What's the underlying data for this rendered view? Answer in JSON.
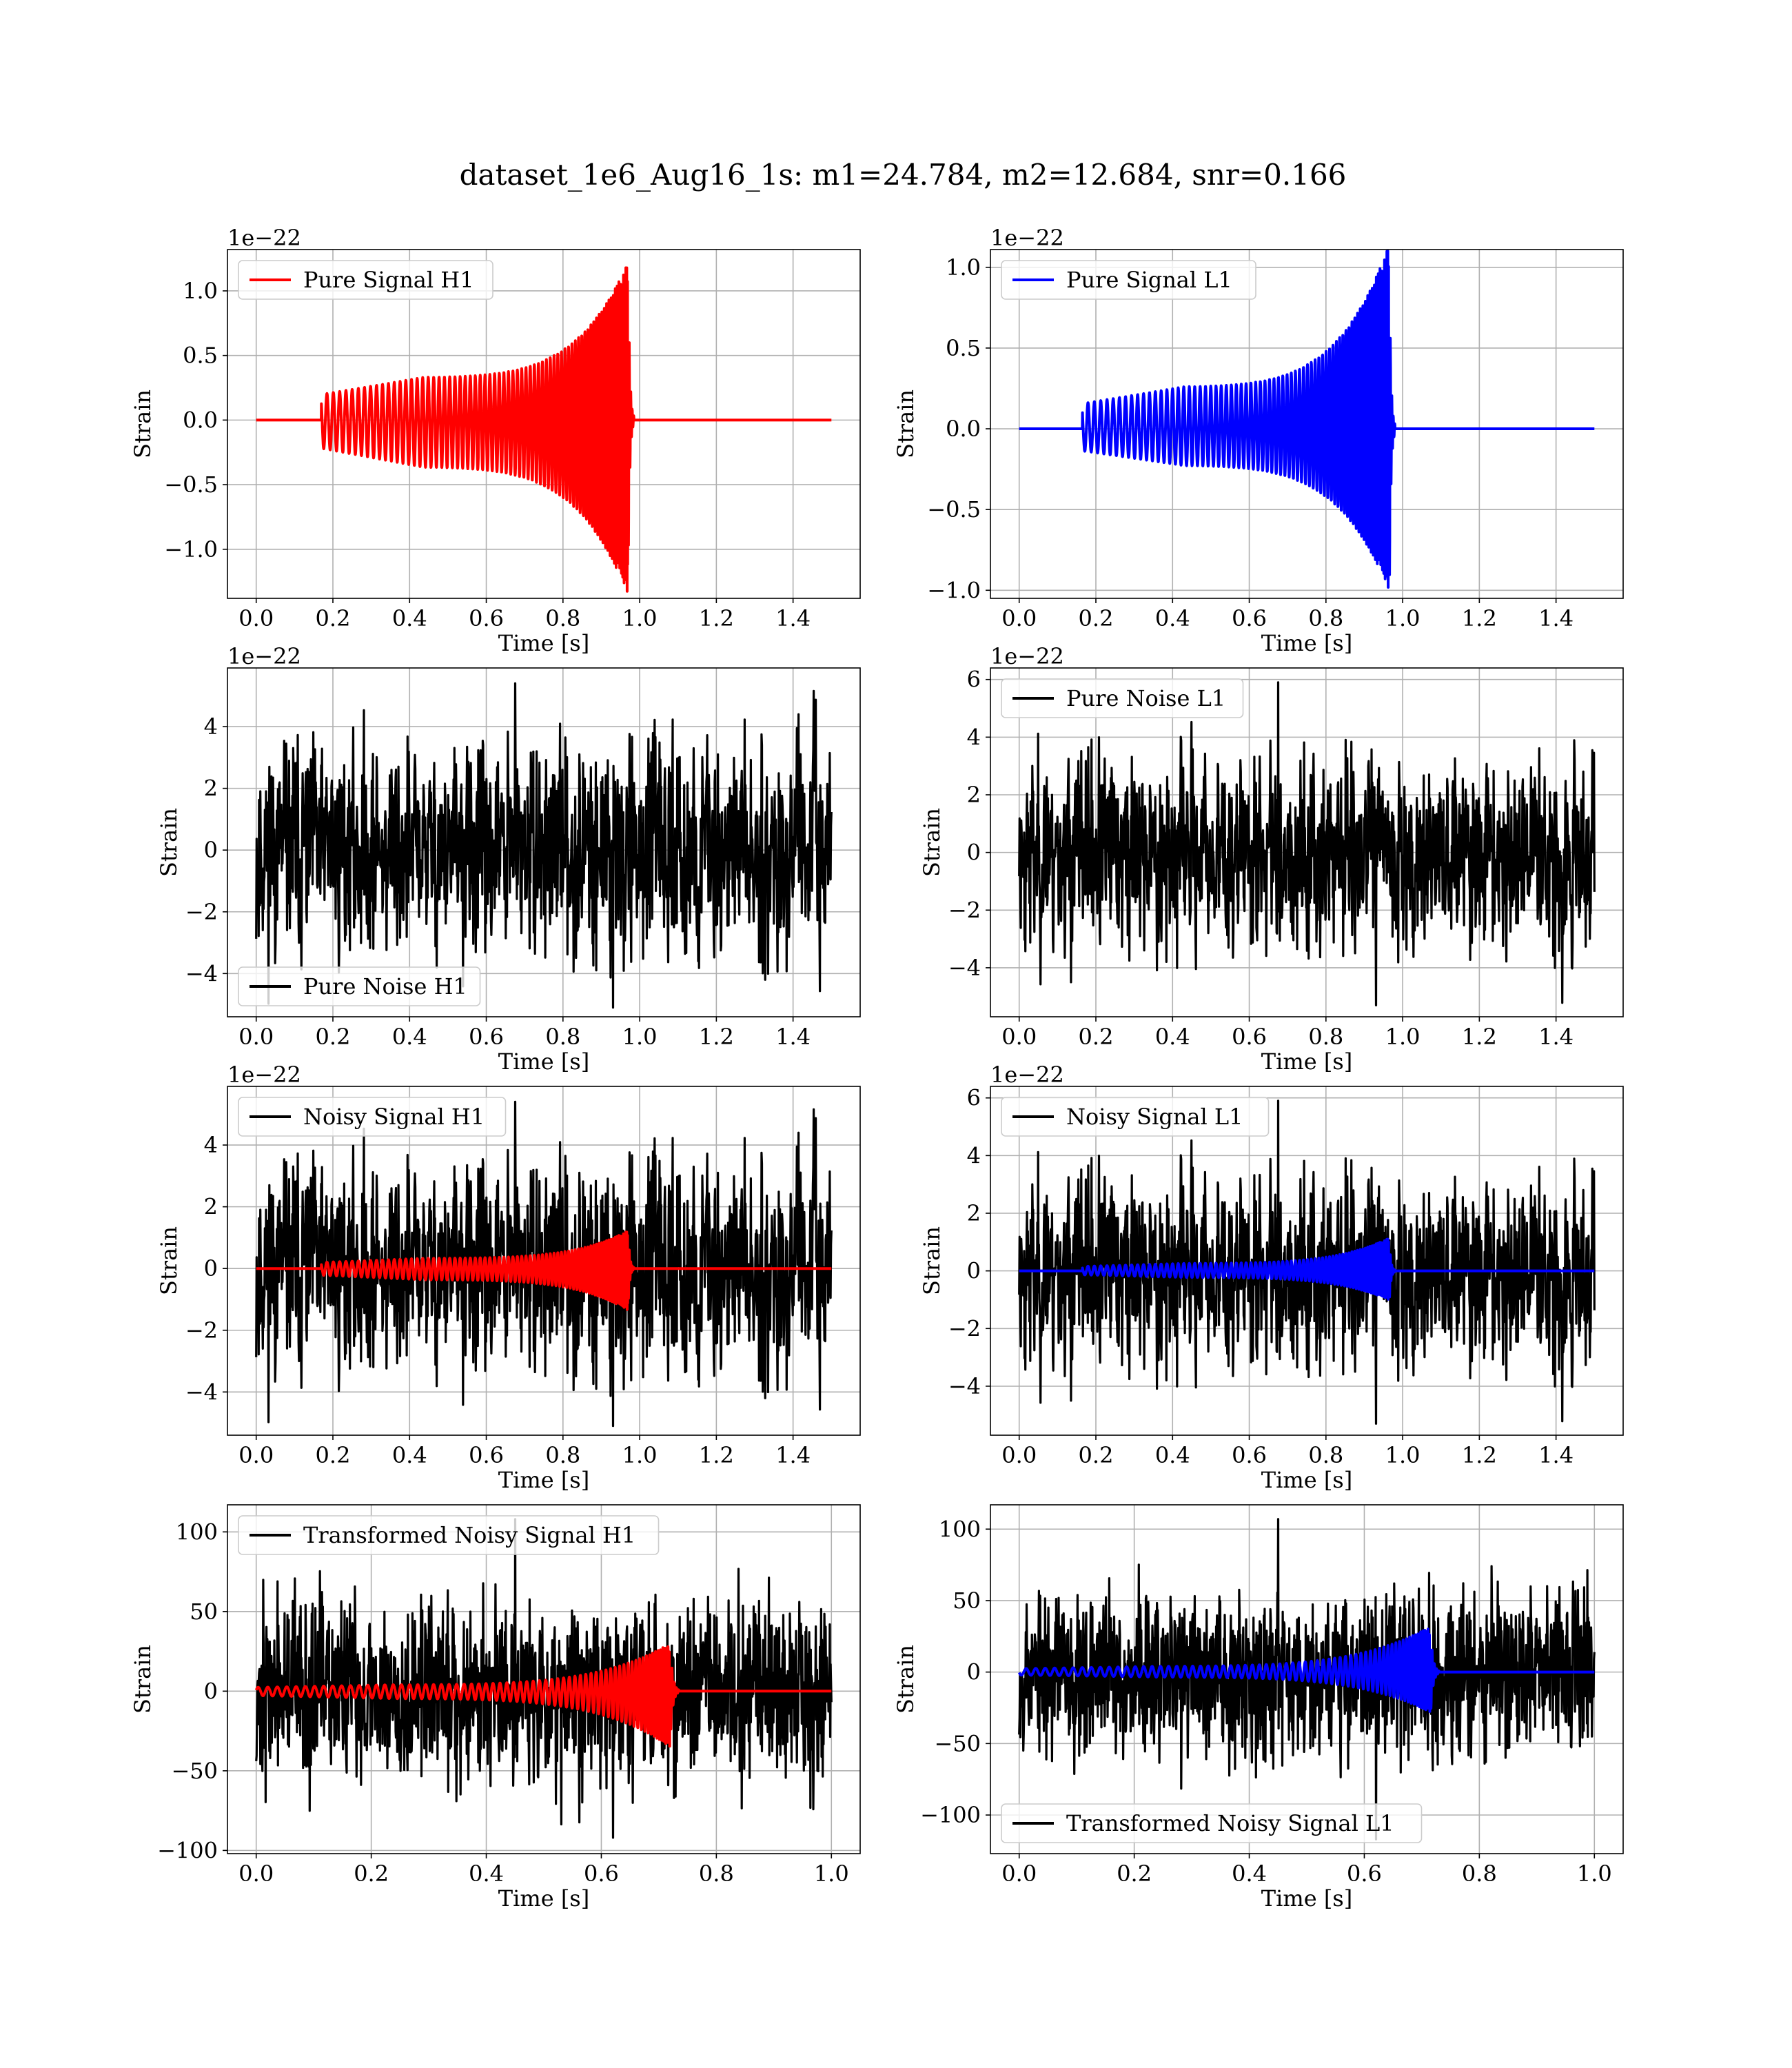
{
  "figure": {
    "suptitle": "dataset_1e6_Aug16_1s: m1=24.784, m2=12.684, snr=0.166"
  },
  "chart_data": [
    {
      "type": "line",
      "legend": "Pure Signal H1",
      "legend_loc": "upper-left",
      "xlabel": "Time [s]",
      "ylabel": "Strain",
      "offset_text": "1e−22",
      "xlim": [
        -0.075,
        1.575
      ],
      "ylim": [
        -1.38,
        1.32
      ],
      "xticks": [
        0.0,
        0.2,
        0.4,
        0.6,
        0.8,
        1.0,
        1.2,
        1.4
      ],
      "xtick_labels": [
        "0.0",
        "0.2",
        "0.4",
        "0.6",
        "0.8",
        "1.0",
        "1.2",
        "1.4"
      ],
      "yticks": [
        -1.0,
        -0.5,
        0.0,
        0.5,
        1.0
      ],
      "ytick_labels": [
        "−1.0",
        "−0.5",
        "0.0",
        "0.5",
        "1.0"
      ],
      "grid": true,
      "series": [
        {
          "name": "Pure Signal H1",
          "color": "#ff0000",
          "kind": "chirp",
          "t_start": 0.0,
          "t_end": 1.5,
          "chirp_start": 0.17,
          "merger": 0.97,
          "ringdown_end": 0.985,
          "amp_start": 0.33,
          "amp_peak": 1.22,
          "amp_min_peak": -1.35
        }
      ]
    },
    {
      "type": "line",
      "legend": "Pure Signal L1",
      "legend_loc": "upper-left",
      "xlabel": "Time [s]",
      "ylabel": "Strain",
      "offset_text": "1e−22",
      "xlim": [
        -0.075,
        1.575
      ],
      "ylim": [
        -1.05,
        1.11
      ],
      "xticks": [
        0.0,
        0.2,
        0.4,
        0.6,
        0.8,
        1.0,
        1.2,
        1.4
      ],
      "xtick_labels": [
        "0.0",
        "0.2",
        "0.4",
        "0.6",
        "0.8",
        "1.0",
        "1.2",
        "1.4"
      ],
      "yticks": [
        -1.0,
        -0.5,
        0.0,
        0.5,
        1.0
      ],
      "ytick_labels": [
        "−1.0",
        "−0.5",
        "0.0",
        "0.5",
        "1.0"
      ],
      "grid": true,
      "series": [
        {
          "name": "Pure Signal L1",
          "color": "#0000ff",
          "kind": "chirp",
          "t_start": 0.0,
          "t_end": 1.5,
          "chirp_start": 0.165,
          "merger": 0.965,
          "ringdown_end": 0.98,
          "amp_start": 0.26,
          "amp_peak": 1.14,
          "amp_min_peak": -1.0
        }
      ]
    },
    {
      "type": "line",
      "legend": "Pure Noise H1",
      "legend_loc": "lower-left",
      "xlabel": "Time [s]",
      "ylabel": "Strain",
      "offset_text": "1e−22",
      "xlim": [
        -0.075,
        1.575
      ],
      "ylim": [
        -5.4,
        5.9
      ],
      "xticks": [
        0.0,
        0.2,
        0.4,
        0.6,
        0.8,
        1.0,
        1.2,
        1.4
      ],
      "xtick_labels": [
        "0.0",
        "0.2",
        "0.4",
        "0.6",
        "0.8",
        "1.0",
        "1.2",
        "1.4"
      ],
      "yticks": [
        -4,
        -2,
        0,
        2,
        4
      ],
      "ytick_labels": [
        "−4",
        "−2",
        "0",
        "2",
        "4"
      ],
      "grid": true,
      "series": [
        {
          "name": "Pure Noise H1",
          "color": "#000000",
          "kind": "noise",
          "t_start": 0.0,
          "t_end": 1.5,
          "sigma": 1.6,
          "min": -5.1,
          "max": 5.4,
          "seed": 11
        }
      ]
    },
    {
      "type": "line",
      "legend": "Pure Noise L1",
      "legend_loc": "upper-left",
      "xlabel": "Time [s]",
      "ylabel": "Strain",
      "offset_text": "1e−22",
      "xlim": [
        -0.075,
        1.575
      ],
      "ylim": [
        -5.7,
        6.4
      ],
      "xticks": [
        0.0,
        0.2,
        0.4,
        0.6,
        0.8,
        1.0,
        1.2,
        1.4
      ],
      "xtick_labels": [
        "0.0",
        "0.2",
        "0.4",
        "0.6",
        "0.8",
        "1.0",
        "1.2",
        "1.4"
      ],
      "yticks": [
        -4,
        -2,
        0,
        2,
        4,
        6
      ],
      "ytick_labels": [
        "−4",
        "−2",
        "0",
        "2",
        "4",
        "6"
      ],
      "grid": true,
      "series": [
        {
          "name": "Pure Noise L1",
          "color": "#000000",
          "kind": "noise",
          "t_start": 0.0,
          "t_end": 1.5,
          "sigma": 1.6,
          "min": -5.3,
          "max": 5.9,
          "seed": 23
        }
      ]
    },
    {
      "type": "line",
      "legend": "Noisy Signal H1",
      "legend_loc": "upper-left",
      "xlabel": "Time [s]",
      "ylabel": "Strain",
      "offset_text": "1e−22",
      "xlim": [
        -0.075,
        1.575
      ],
      "ylim": [
        -5.4,
        5.9
      ],
      "xticks": [
        0.0,
        0.2,
        0.4,
        0.6,
        0.8,
        1.0,
        1.2,
        1.4
      ],
      "xtick_labels": [
        "0.0",
        "0.2",
        "0.4",
        "0.6",
        "0.8",
        "1.0",
        "1.2",
        "1.4"
      ],
      "yticks": [
        -4,
        -2,
        0,
        2,
        4
      ],
      "ytick_labels": [
        "−4",
        "−2",
        "0",
        "2",
        "4"
      ],
      "grid": true,
      "series": [
        {
          "name": "Noisy Signal H1",
          "color": "#000000",
          "kind": "noise",
          "t_start": 0.0,
          "t_end": 1.5,
          "sigma": 1.6,
          "min": -5.1,
          "max": 5.4,
          "seed": 11
        },
        {
          "name": "",
          "color": "#ff0000",
          "kind": "chirp",
          "t_start": 0.0,
          "t_end": 1.5,
          "chirp_start": 0.17,
          "merger": 0.97,
          "ringdown_end": 0.985,
          "amp_start": 0.33,
          "amp_peak": 1.22,
          "amp_min_peak": -1.35
        }
      ]
    },
    {
      "type": "line",
      "legend": "Noisy Signal L1",
      "legend_loc": "upper-left",
      "xlabel": "Time [s]",
      "ylabel": "Strain",
      "offset_text": "1e−22",
      "xlim": [
        -0.075,
        1.575
      ],
      "ylim": [
        -5.7,
        6.4
      ],
      "xticks": [
        0.0,
        0.2,
        0.4,
        0.6,
        0.8,
        1.0,
        1.2,
        1.4
      ],
      "xtick_labels": [
        "0.0",
        "0.2",
        "0.4",
        "0.6",
        "0.8",
        "1.0",
        "1.2",
        "1.4"
      ],
      "yticks": [
        -4,
        -2,
        0,
        2,
        4,
        6
      ],
      "ytick_labels": [
        "−4",
        "−2",
        "0",
        "2",
        "4",
        "6"
      ],
      "grid": true,
      "series": [
        {
          "name": "Noisy Signal L1",
          "color": "#000000",
          "kind": "noise",
          "t_start": 0.0,
          "t_end": 1.5,
          "sigma": 1.6,
          "min": -5.3,
          "max": 5.9,
          "seed": 23
        },
        {
          "name": "",
          "color": "#0000ff",
          "kind": "chirp",
          "t_start": 0.0,
          "t_end": 1.5,
          "chirp_start": 0.165,
          "merger": 0.965,
          "ringdown_end": 0.98,
          "amp_start": 0.26,
          "amp_peak": 1.14,
          "amp_min_peak": -1.0
        }
      ]
    },
    {
      "type": "line",
      "legend": "Transformed Noisy Signal H1",
      "legend_loc": "upper-left",
      "xlabel": "Time [s]",
      "ylabel": "Strain",
      "offset_text": "",
      "xlim": [
        -0.05,
        1.05
      ],
      "ylim": [
        -102,
        117
      ],
      "xticks": [
        0.0,
        0.2,
        0.4,
        0.6,
        0.8,
        1.0
      ],
      "xtick_labels": [
        "0.0",
        "0.2",
        "0.4",
        "0.6",
        "0.8",
        "1.0"
      ],
      "yticks": [
        -100,
        -50,
        0,
        50,
        100
      ],
      "ytick_labels": [
        "−100",
        "−50",
        "0",
        "50",
        "100"
      ],
      "grid": true,
      "series": [
        {
          "name": "Transformed Noisy Signal H1",
          "color": "#000000",
          "kind": "noise",
          "t_start": 0.0,
          "t_end": 1.0,
          "sigma": 28,
          "min": -92,
          "max": 108,
          "seed": 37
        },
        {
          "name": "",
          "color": "#ff0000",
          "kind": "chirp",
          "t_start": 0.0,
          "t_end": 1.0,
          "chirp_start": 0.0,
          "merger": 0.72,
          "ringdown_end": 0.735,
          "amp_start": 4,
          "amp_peak": 30,
          "amp_min_peak": -35
        }
      ]
    },
    {
      "type": "line",
      "legend": "Transformed Noisy Signal L1",
      "legend_loc": "lower-left",
      "xlabel": "Time [s]",
      "ylabel": "Strain",
      "offset_text": "",
      "xlim": [
        -0.05,
        1.05
      ],
      "ylim": [
        -127,
        117
      ],
      "xticks": [
        0.0,
        0.2,
        0.4,
        0.6,
        0.8,
        1.0
      ],
      "xtick_labels": [
        "0.0",
        "0.2",
        "0.4",
        "0.6",
        "0.8",
        "1.0"
      ],
      "yticks": [
        -100,
        -50,
        0,
        50,
        100
      ],
      "ytick_labels": [
        "−100",
        "−50",
        "0",
        "50",
        "100"
      ],
      "grid": true,
      "series": [
        {
          "name": "Transformed Noisy Signal L1",
          "color": "#000000",
          "kind": "noise",
          "t_start": 0.0,
          "t_end": 1.0,
          "sigma": 28,
          "min": -117,
          "max": 107,
          "seed": 53
        },
        {
          "name": "",
          "color": "#0000ff",
          "kind": "chirp",
          "t_start": 0.0,
          "t_end": 1.0,
          "chirp_start": 0.0,
          "merger": 0.715,
          "ringdown_end": 0.73,
          "amp_start": 4,
          "amp_peak": 32,
          "amp_min_peak": -28
        }
      ]
    }
  ]
}
